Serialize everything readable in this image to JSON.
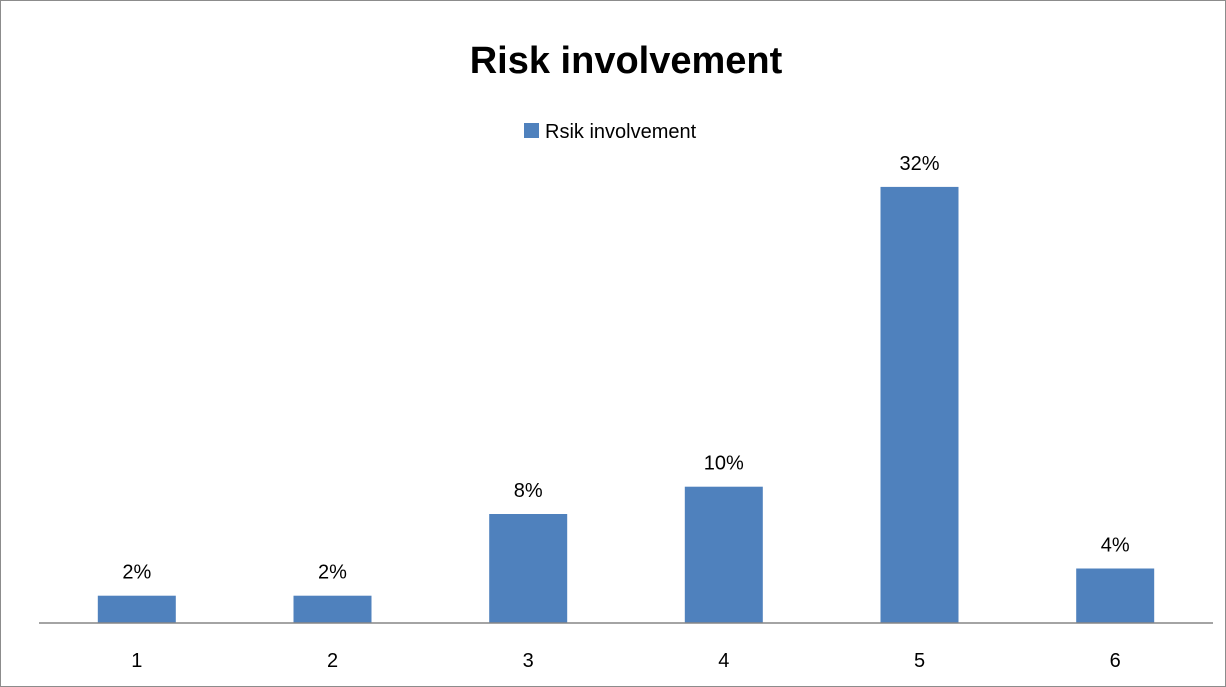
{
  "chart_data": {
    "type": "bar",
    "title": "Risk involvement",
    "xlabel": "",
    "ylabel": "",
    "categories": [
      "1",
      "2",
      "3",
      "4",
      "5",
      "6"
    ],
    "series": [
      {
        "name": "Rsik involvement",
        "values": [
          2,
          2,
          8,
          10,
          32,
          4
        ],
        "labels": [
          "2%",
          "2%",
          "8%",
          "10%",
          "32%",
          "4%"
        ]
      }
    ],
    "ylim": [
      0,
      35
    ],
    "grid": false,
    "legend": "top-center",
    "bar_color": "#4F81BD",
    "axis_color": "#868686"
  }
}
